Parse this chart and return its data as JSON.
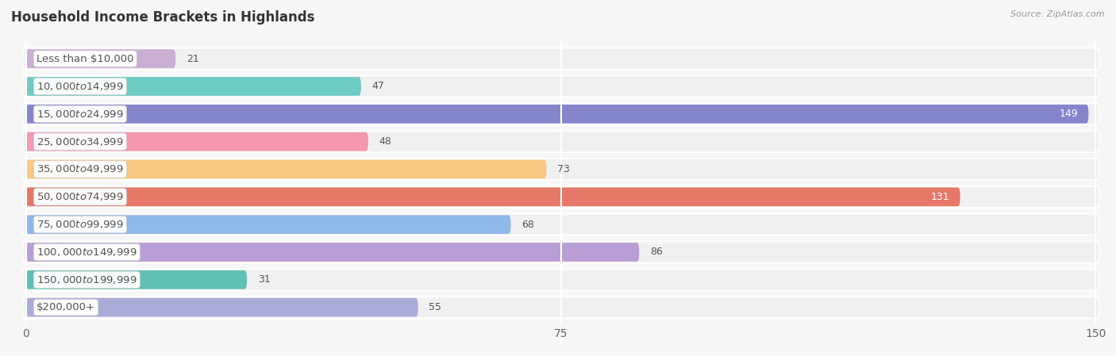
{
  "title": "Household Income Brackets in Highlands",
  "source": "Source: ZipAtlas.com",
  "categories": [
    "Less than $10,000",
    "$10,000 to $14,999",
    "$15,000 to $24,999",
    "$25,000 to $34,999",
    "$35,000 to $49,999",
    "$50,000 to $74,999",
    "$75,000 to $99,999",
    "$100,000 to $149,999",
    "$150,000 to $199,999",
    "$200,000+"
  ],
  "values": [
    21,
    47,
    149,
    48,
    73,
    131,
    68,
    86,
    31,
    55
  ],
  "bar_colors": [
    "#cbaed4",
    "#6dccc2",
    "#8585cc",
    "#f598b0",
    "#f9c882",
    "#e57868",
    "#90b8e8",
    "#b89ed4",
    "#60c0b4",
    "#aaacd8"
  ],
  "xlim": [
    0,
    150
  ],
  "xticks": [
    0,
    75,
    150
  ],
  "background_color": "#f7f7f7",
  "bar_bg_color": "#ebebeb",
  "row_bg_color": "#f0f0f0",
  "title_fontsize": 12,
  "label_fontsize": 9.5,
  "value_fontsize": 9
}
